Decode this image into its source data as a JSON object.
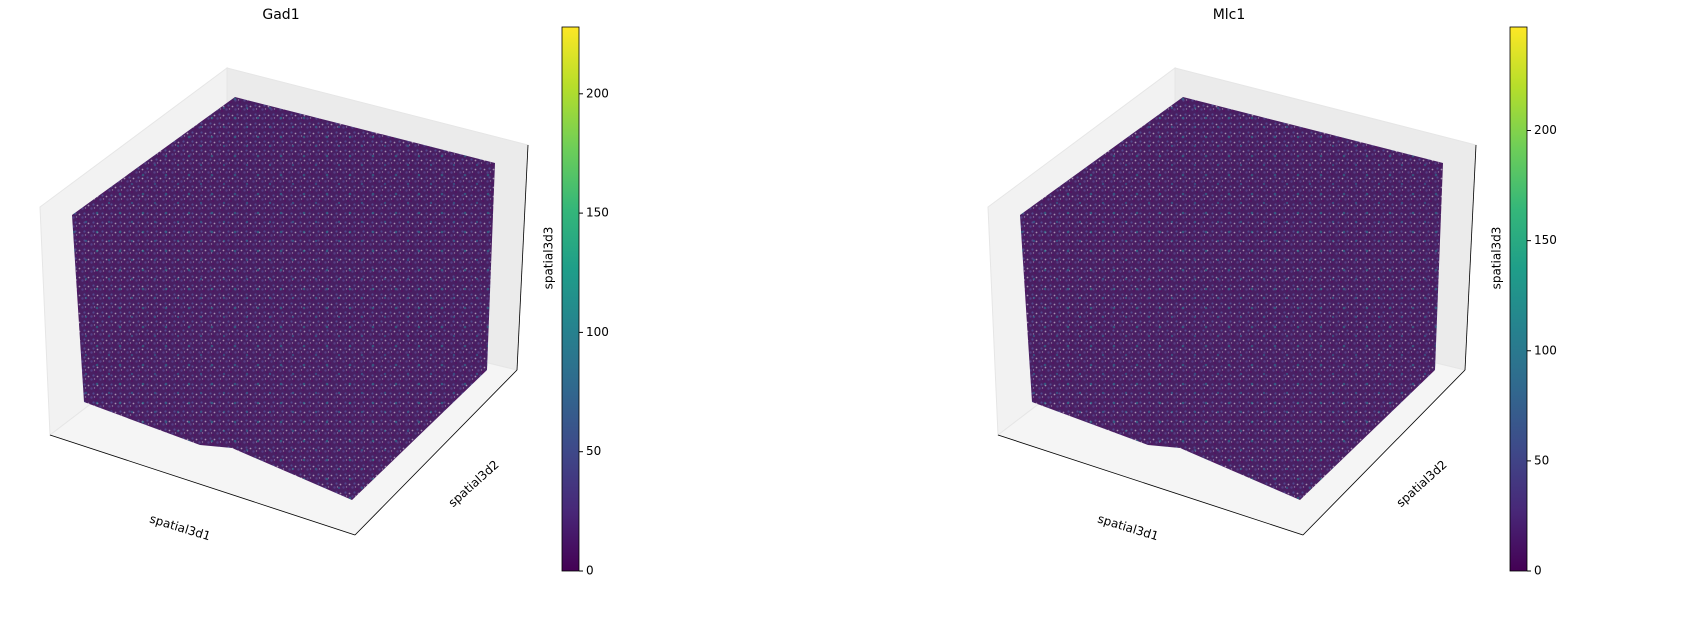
{
  "chart_data": [
    {
      "type": "scatter3d",
      "title": "Gad1",
      "xlabel": "spatial3d1",
      "ylabel": "spatial3d2",
      "zlabel": "spatial3d3",
      "colormap": "viridis",
      "clim": [
        0,
        228
      ],
      "cticks": [
        0,
        50,
        100,
        150,
        200
      ]
    },
    {
      "type": "scatter3d",
      "title": "Mlc1",
      "xlabel": "spatial3d1",
      "ylabel": "spatial3d2",
      "zlabel": "spatial3d3",
      "colormap": "viridis",
      "clim": [
        0,
        247
      ],
      "cticks": [
        0,
        50,
        100,
        150,
        200
      ]
    }
  ]
}
